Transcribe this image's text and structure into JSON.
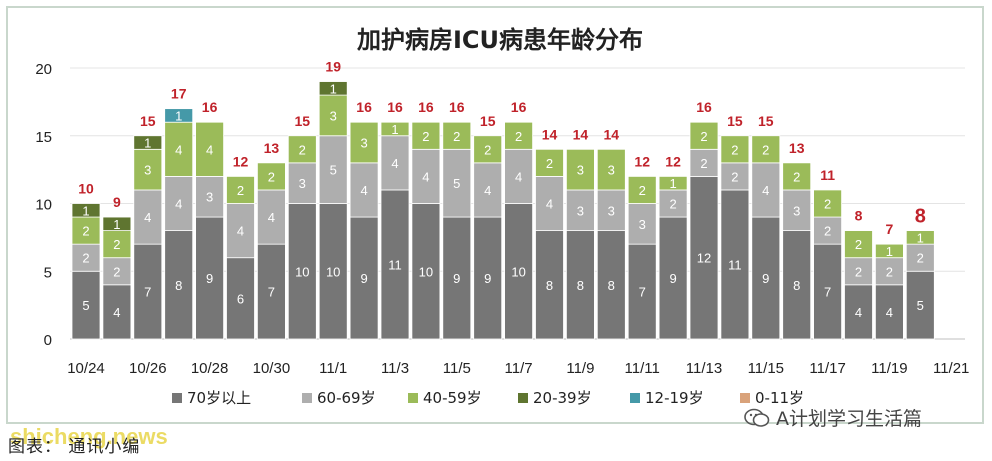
{
  "chart_data": {
    "type": "bar",
    "stacked": true,
    "title": "加护病房ICU病患年龄分布",
    "categories": [
      "10/24",
      "10/25",
      "10/26",
      "10/27",
      "10/28",
      "10/29",
      "10/30",
      "10/31",
      "11/1",
      "11/2",
      "11/3",
      "11/4",
      "11/5",
      "11/6",
      "11/7",
      "11/8",
      "11/9",
      "11/10",
      "11/11",
      "11/12",
      "11/13",
      "11/14",
      "11/15",
      "11/16",
      "11/17",
      "11/18",
      "11/19",
      "11/20"
    ],
    "xtick_labels": [
      "10/24",
      "10/26",
      "10/28",
      "10/30",
      "11/1",
      "11/3",
      "11/5",
      "11/7",
      "11/9",
      "11/11",
      "11/13",
      "11/15",
      "11/17",
      "11/19",
      "11/21"
    ],
    "ylim": [
      0,
      20
    ],
    "yticks": [
      0,
      5,
      10,
      15,
      20
    ],
    "grid": true,
    "legend_position": "bottom",
    "series": [
      {
        "name": "70岁以上",
        "color": "#767676",
        "values": [
          5,
          4,
          7,
          8,
          9,
          6,
          7,
          10,
          10,
          9,
          11,
          10,
          9,
          9,
          10,
          8,
          8,
          8,
          7,
          9,
          12,
          11,
          9,
          8,
          7,
          4,
          4,
          5
        ]
      },
      {
        "name": "60-69岁",
        "color": "#aeaeae",
        "values": [
          2,
          2,
          4,
          4,
          3,
          4,
          4,
          3,
          5,
          4,
          4,
          4,
          5,
          4,
          4,
          4,
          3,
          3,
          3,
          2,
          2,
          2,
          4,
          3,
          2,
          2,
          2,
          2
        ]
      },
      {
        "name": "40-59岁",
        "color": "#9bbb59",
        "values": [
          2,
          2,
          3,
          4,
          4,
          2,
          2,
          2,
          3,
          3,
          1,
          2,
          2,
          2,
          2,
          2,
          3,
          3,
          2,
          1,
          2,
          2,
          2,
          2,
          2,
          2,
          1,
          1
        ]
      },
      {
        "name": "20-39岁",
        "color": "#5f7530",
        "values": [
          1,
          1,
          1,
          0,
          0,
          0,
          0,
          0,
          1,
          0,
          0,
          0,
          0,
          0,
          0,
          0,
          0,
          0,
          0,
          0,
          0,
          0,
          0,
          0,
          0,
          0,
          0,
          0
        ]
      },
      {
        "name": "12-19岁",
        "color": "#4599a8",
        "values": [
          0,
          0,
          0,
          1,
          0,
          0,
          0,
          0,
          0,
          0,
          0,
          0,
          0,
          0,
          0,
          0,
          0,
          0,
          0,
          0,
          0,
          0,
          0,
          0,
          0,
          0,
          0,
          0
        ]
      },
      {
        "name": "0-11岁",
        "color": "#d9a27a",
        "values": [
          0,
          0,
          0,
          0,
          0,
          0,
          0,
          0,
          0,
          0,
          0,
          0,
          0,
          0,
          0,
          0,
          0,
          0,
          0,
          0,
          0,
          0,
          0,
          0,
          0,
          0,
          0,
          0
        ]
      }
    ],
    "totals": [
      10,
      9,
      15,
      17,
      16,
      12,
      13,
      15,
      19,
      16,
      16,
      16,
      16,
      15,
      16,
      14,
      14,
      14,
      12,
      12,
      16,
      15,
      15,
      13,
      11,
      8,
      7,
      8
    ],
    "total_label_color": "#c0222a"
  },
  "footer": {
    "caption": "图表：  通讯小编",
    "watermark_left": "shicheng.news",
    "watermark_right": "A计划学习生活篇"
  }
}
